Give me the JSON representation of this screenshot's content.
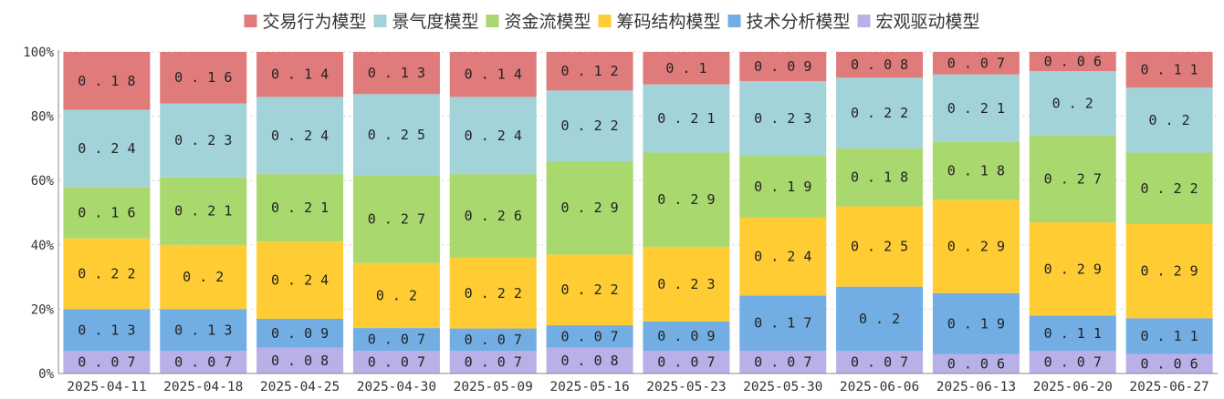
{
  "chart_data": {
    "type": "bar",
    "stacked": true,
    "categories": [
      "2025-04-11",
      "2025-04-18",
      "2025-04-25",
      "2025-04-30",
      "2025-05-09",
      "2025-05-16",
      "2025-05-23",
      "2025-05-30",
      "2025-06-06",
      "2025-06-13",
      "2025-06-20",
      "2025-06-27"
    ],
    "series": [
      {
        "name": "宏观驱动模型",
        "color": "#b8b0e6",
        "values": [
          0.07,
          0.07,
          0.08,
          0.07,
          0.07,
          0.08,
          0.07,
          0.07,
          0.07,
          0.06,
          0.07,
          0.06
        ]
      },
      {
        "name": "技术分析模型",
        "color": "#72ade3",
        "values": [
          0.13,
          0.13,
          0.09,
          0.07,
          0.07,
          0.07,
          0.09,
          0.17,
          0.2,
          0.19,
          0.11,
          0.11
        ]
      },
      {
        "name": "筹码结构模型",
        "color": "#ffcc33",
        "values": [
          0.22,
          0.2,
          0.24,
          0.2,
          0.22,
          0.22,
          0.23,
          0.24,
          0.25,
          0.29,
          0.29,
          0.29
        ]
      },
      {
        "name": "资金流模型",
        "color": "#a8d86e",
        "values": [
          0.16,
          0.21,
          0.21,
          0.27,
          0.26,
          0.29,
          0.29,
          0.19,
          0.18,
          0.18,
          0.27,
          0.22
        ]
      },
      {
        "name": "景气度模型",
        "color": "#a2d3d9",
        "values": [
          0.24,
          0.23,
          0.24,
          0.25,
          0.24,
          0.22,
          0.21,
          0.23,
          0.22,
          0.21,
          0.2,
          0.2
        ]
      },
      {
        "name": "交易行为模型",
        "color": "#e07b7b",
        "values": [
          0.18,
          0.16,
          0.14,
          0.13,
          0.14,
          0.12,
          0.1,
          0.09,
          0.08,
          0.07,
          0.06,
          0.11
        ]
      }
    ],
    "legend_order": [
      "交易行为模型",
      "景气度模型",
      "资金流模型",
      "筹码结构模型",
      "技术分析模型",
      "宏观驱动模型"
    ],
    "legend_position": "top",
    "yticks": [
      "0%",
      "20%",
      "40%",
      "60%",
      "80%",
      "100%"
    ],
    "ylim": [
      0,
      1
    ],
    "grid": true,
    "title": "",
    "xlabel": "",
    "ylabel": ""
  }
}
